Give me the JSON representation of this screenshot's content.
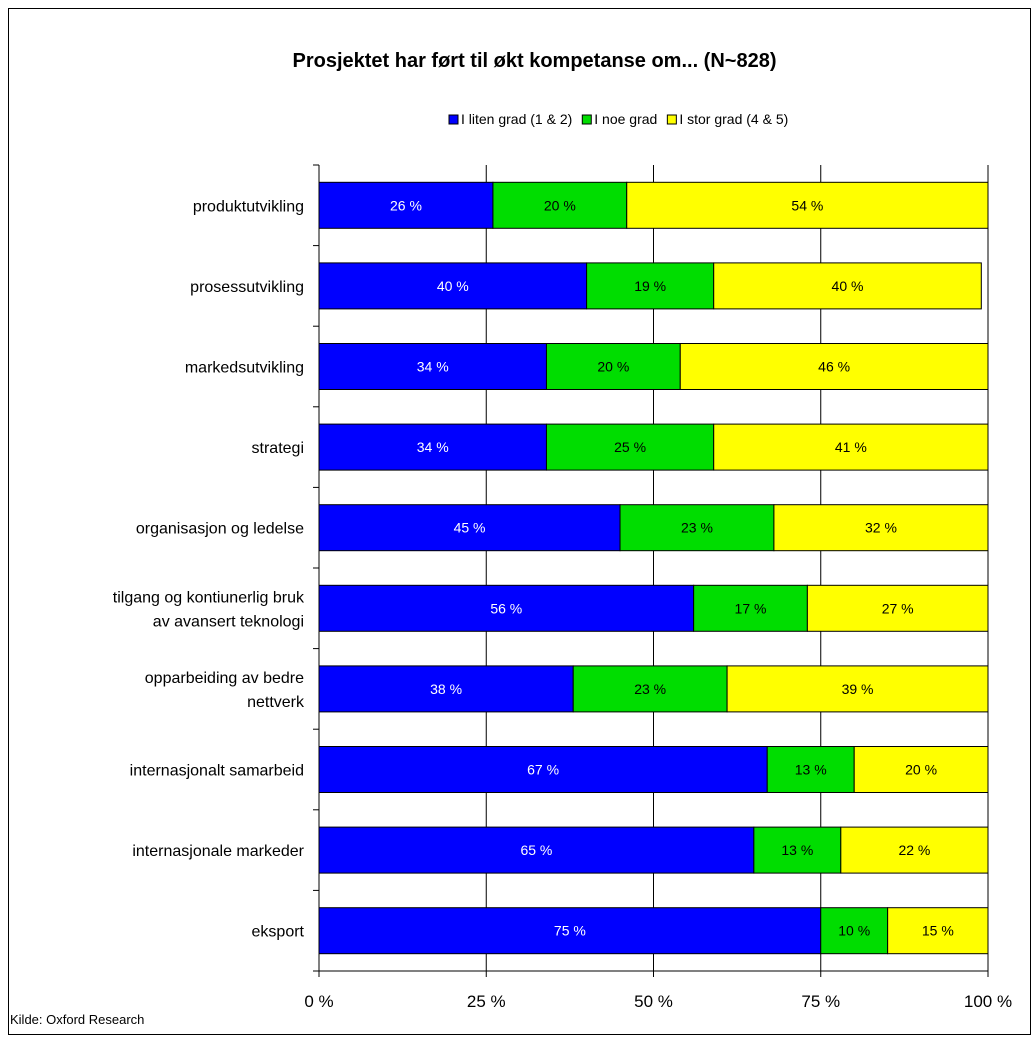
{
  "chart_data": {
    "type": "bar",
    "orientation": "horizontal",
    "stacked": true,
    "title": "Prosjektet har ført til økt kompetanse om... (N~828)",
    "categories": [
      [
        "produktutvikling"
      ],
      [
        "prosessutvikling"
      ],
      [
        "markedsutvikling"
      ],
      [
        "strategi"
      ],
      [
        "organisasjon og ledelse"
      ],
      [
        "tilgang og kontiunerlig bruk",
        "av avansert teknologi"
      ],
      [
        "opparbeiding av bedre",
        "nettverk"
      ],
      [
        "internasjonalt samarbeid"
      ],
      [
        "internasjonale markeder"
      ],
      [
        "eksport"
      ]
    ],
    "series": [
      {
        "name": "I liten grad (1 & 2)",
        "color": "#0000ff",
        "label_color": "#ffffff",
        "values": [
          26,
          40,
          34,
          34,
          45,
          56,
          38,
          67,
          65,
          75
        ],
        "labels": [
          "26 %",
          "40 %",
          "34 %",
          "34 %",
          "45 %",
          "56 %",
          "38 %",
          "67 %",
          "65 %",
          "75 %"
        ]
      },
      {
        "name": "I noe grad",
        "color": "#00dd00",
        "label_color": "#000000",
        "values": [
          20,
          19,
          20,
          25,
          23,
          17,
          23,
          13,
          13,
          10
        ],
        "labels": [
          "20 %",
          "19 %",
          "20 %",
          "25 %",
          "23 %",
          "17 %",
          "23 %",
          "13 %",
          "13 %",
          "10 %"
        ]
      },
      {
        "name": "I stor grad (4 & 5)",
        "color": "#ffff00",
        "label_color": "#000000",
        "values": [
          54,
          40,
          46,
          41,
          32,
          27,
          39,
          20,
          22,
          15
        ],
        "labels": [
          "54 %",
          "40 %",
          "46 %",
          "41 %",
          "32 %",
          "27 %",
          "39 %",
          "20 %",
          "22 %",
          "15 %"
        ]
      }
    ],
    "xlim": [
      0,
      100
    ],
    "xticks": [
      0,
      25,
      50,
      75,
      100
    ],
    "xtick_labels": [
      "0 %",
      "25 %",
      "50 %",
      "75 %",
      "100 %"
    ],
    "grid": true,
    "legend_position": "top"
  },
  "source_note": "Kilde: Oxford Research"
}
